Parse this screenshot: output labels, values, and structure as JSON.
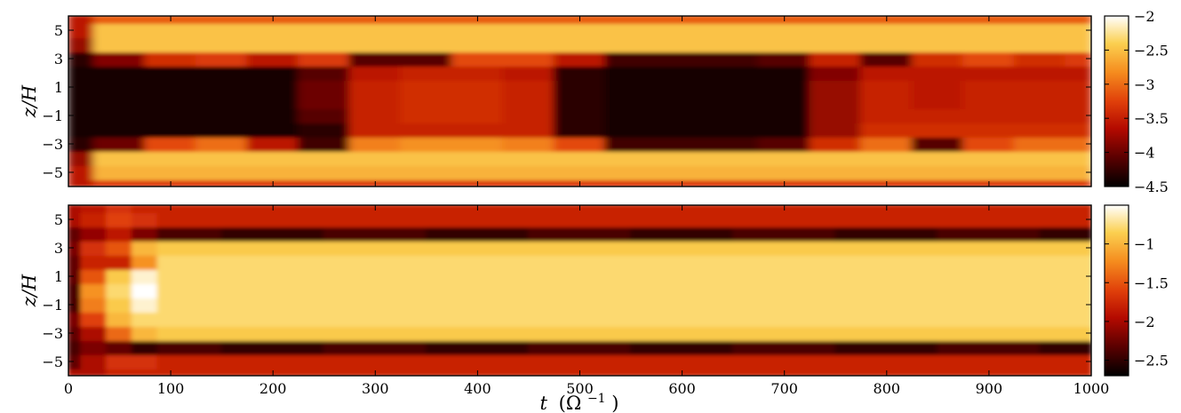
{
  "chart_data": [
    {
      "type": "heatmap",
      "panel": "top",
      "title": "",
      "xlabel": "",
      "ylabel": "z/H",
      "xlim": [
        0,
        1000
      ],
      "ylim": [
        -6,
        6
      ],
      "yticks": [
        5,
        3,
        1,
        -1,
        -3,
        -5
      ],
      "ytick_labels": [
        "5",
        "3",
        "1",
        "−1",
        "−3",
        "−5"
      ],
      "colorbar": {
        "range": [
          -4.5,
          -2
        ],
        "ticks": [
          -2,
          -2.5,
          -3,
          -3.5,
          -4,
          -4.5
        ],
        "tick_labels": [
          "−2",
          "−2.5",
          "−3",
          "−3.5",
          "−4",
          "−4.5"
        ],
        "colormap": [
          "#000000",
          "#5a0000",
          "#b40a00",
          "#e0400a",
          "#f58c1e",
          "#fbd050",
          "#ffffff"
        ]
      },
      "x_times": [
        0,
        50,
        100,
        150,
        200,
        250,
        300,
        350,
        400,
        450,
        500,
        550,
        600,
        650,
        700,
        750,
        800,
        850,
        900,
        950,
        1000
      ],
      "z_levels": [
        -6,
        -5,
        -4,
        -3,
        -2,
        -1,
        0,
        1,
        2,
        3,
        4,
        5,
        6
      ],
      "z_values": [
        [
          -3.6,
          -3.3,
          -3.3,
          -3.3,
          -3.3,
          -3.3,
          -3.3,
          -3.3,
          -3.3,
          -3.3,
          -3.3,
          -3.3,
          -3.3,
          -3.3,
          -3.3,
          -3.3,
          -3.3,
          -3.3,
          -3.3,
          -3.3,
          -3.3
        ],
        [
          -3.6,
          -2.6,
          -2.6,
          -2.6,
          -2.6,
          -2.6,
          -2.6,
          -2.6,
          -2.6,
          -2.6,
          -2.6,
          -2.6,
          -2.6,
          -2.6,
          -2.6,
          -2.6,
          -2.6,
          -2.6,
          -2.6,
          -2.6,
          -2.6
        ],
        [
          -3.8,
          -2.5,
          -2.5,
          -2.5,
          -2.5,
          -2.5,
          -2.5,
          -2.5,
          -2.5,
          -2.5,
          -2.5,
          -2.5,
          -2.5,
          -2.5,
          -2.5,
          -2.5,
          -2.5,
          -2.5,
          -2.5,
          -2.5,
          -2.5
        ],
        [
          -4.3,
          -4.0,
          -3.2,
          -3.0,
          -3.6,
          -4.2,
          -2.9,
          -2.8,
          -2.8,
          -2.9,
          -3.2,
          -4.2,
          -4.2,
          -4.2,
          -4.1,
          -3.4,
          -3.0,
          -4.1,
          -3.2,
          -3.0,
          -3.0
        ],
        [
          -4.4,
          -4.4,
          -4.4,
          -4.4,
          -4.4,
          -4.3,
          -3.5,
          -3.5,
          -3.5,
          -3.5,
          -4.3,
          -4.4,
          -4.4,
          -4.4,
          -4.4,
          -3.8,
          -3.4,
          -3.4,
          -3.4,
          -3.4,
          -3.4
        ],
        [
          -4.4,
          -4.4,
          -4.4,
          -4.4,
          -4.4,
          -4.1,
          -3.5,
          -3.4,
          -3.4,
          -3.5,
          -4.3,
          -4.4,
          -4.4,
          -4.4,
          -4.4,
          -3.8,
          -3.5,
          -3.5,
          -3.5,
          -3.5,
          -3.5
        ],
        [
          -4.4,
          -4.4,
          -4.4,
          -4.4,
          -4.4,
          -4.0,
          -3.5,
          -3.4,
          -3.4,
          -3.5,
          -4.3,
          -4.4,
          -4.4,
          -4.4,
          -4.4,
          -3.8,
          -3.5,
          -3.6,
          -3.5,
          -3.5,
          -3.5
        ],
        [
          -4.4,
          -4.4,
          -4.4,
          -4.4,
          -4.4,
          -4.0,
          -3.5,
          -3.4,
          -3.4,
          -3.5,
          -4.3,
          -4.4,
          -4.4,
          -4.4,
          -4.4,
          -3.8,
          -3.5,
          -3.6,
          -3.5,
          -3.5,
          -3.5
        ],
        [
          -4.4,
          -4.4,
          -4.4,
          -4.4,
          -4.4,
          -4.1,
          -3.6,
          -3.5,
          -3.5,
          -3.6,
          -4.3,
          -4.4,
          -4.4,
          -4.4,
          -4.4,
          -3.9,
          -3.6,
          -3.6,
          -3.6,
          -3.6,
          -3.6
        ],
        [
          -4.3,
          -3.9,
          -3.4,
          -3.3,
          -3.6,
          -3.3,
          -4.1,
          -4.1,
          -3.2,
          -3.2,
          -3.6,
          -4.2,
          -4.2,
          -4.2,
          -4.1,
          -3.5,
          -4.1,
          -3.4,
          -3.2,
          -3.4,
          -3.3
        ],
        [
          -3.8,
          -2.5,
          -2.5,
          -2.5,
          -2.5,
          -2.5,
          -2.5,
          -2.5,
          -2.5,
          -2.5,
          -2.5,
          -2.5,
          -2.5,
          -2.5,
          -2.5,
          -2.5,
          -2.5,
          -2.5,
          -2.5,
          -2.5,
          -2.5
        ],
        [
          -3.6,
          -2.5,
          -2.5,
          -2.5,
          -2.5,
          -2.5,
          -2.5,
          -2.5,
          -2.5,
          -2.5,
          -2.5,
          -2.5,
          -2.5,
          -2.5,
          -2.5,
          -2.5,
          -2.5,
          -2.5,
          -2.5,
          -2.5,
          -2.5
        ],
        [
          -3.6,
          -3.1,
          -3.1,
          -3.1,
          -3.1,
          -3.1,
          -3.1,
          -3.1,
          -3.1,
          -3.1,
          -3.1,
          -3.1,
          -3.1,
          -3.1,
          -3.1,
          -3.1,
          -3.1,
          -3.1,
          -3.1,
          -3.1,
          -3.1
        ]
      ]
    },
    {
      "type": "heatmap",
      "panel": "bottom",
      "title": "",
      "xlabel": "t (Ω⁻¹)",
      "ylabel": "z/H",
      "xlim": [
        0,
        1000
      ],
      "ylim": [
        -6,
        6
      ],
      "xticks": [
        0,
        100,
        200,
        300,
        400,
        500,
        600,
        700,
        800,
        900,
        1000
      ],
      "xtick_labels": [
        "0",
        "100",
        "200",
        "300",
        "400",
        "500",
        "600",
        "700",
        "800",
        "900",
        "1000"
      ],
      "yticks": [
        5,
        3,
        1,
        -1,
        -3,
        -5
      ],
      "ytick_labels": [
        "5",
        "3",
        "1",
        "−1",
        "−3",
        "−5"
      ],
      "colorbar": {
        "range": [
          -2.7,
          -0.5
        ],
        "ticks": [
          -1,
          -1.5,
          -2,
          -2.5
        ],
        "tick_labels": [
          "−1",
          "−1.5",
          "−2",
          "−2.5"
        ],
        "colormap": [
          "#000000",
          "#5a0000",
          "#b40a00",
          "#e0400a",
          "#f58c1e",
          "#fbd050",
          "#ffffff"
        ]
      },
      "x_times": [
        0,
        25,
        50,
        75,
        100,
        200,
        300,
        400,
        500,
        600,
        700,
        800,
        900,
        1000
      ],
      "z_levels": [
        -6,
        -5,
        -4,
        -3,
        -2,
        -1,
        0,
        1,
        2,
        3,
        4,
        5,
        6
      ],
      "z_values": [
        [
          -2.0,
          -2.0,
          -1.8,
          -1.8,
          -1.8,
          -1.8,
          -1.8,
          -1.8,
          -1.8,
          -1.8,
          -1.8,
          -1.8,
          -1.8,
          -1.8
        ],
        [
          -2.3,
          -2.0,
          -1.7,
          -1.7,
          -1.8,
          -1.8,
          -1.8,
          -1.8,
          -1.8,
          -1.8,
          -1.8,
          -1.8,
          -1.8,
          -1.8
        ],
        [
          -2.4,
          -2.2,
          -2.3,
          -2.5,
          -2.4,
          -2.5,
          -2.4,
          -2.5,
          -2.4,
          -2.5,
          -2.4,
          -2.5,
          -2.4,
          -2.5
        ],
        [
          -2.3,
          -2.0,
          -1.4,
          -1.0,
          -0.9,
          -0.9,
          -0.9,
          -0.9,
          -0.9,
          -0.9,
          -0.9,
          -0.9,
          -0.9,
          -0.9
        ],
        [
          -2.2,
          -1.6,
          -1.0,
          -0.8,
          -0.8,
          -0.8,
          -0.8,
          -0.8,
          -0.8,
          -0.8,
          -0.8,
          -0.8,
          -0.8,
          -0.8
        ],
        [
          -2.4,
          -1.3,
          -0.9,
          -0.6,
          -0.8,
          -0.8,
          -0.8,
          -0.8,
          -0.8,
          -0.8,
          -0.8,
          -0.8,
          -0.8,
          -0.8
        ],
        [
          -2.4,
          -1.2,
          -0.8,
          -0.5,
          -0.8,
          -0.8,
          -0.8,
          -0.8,
          -0.8,
          -0.8,
          -0.8,
          -0.8,
          -0.8,
          -0.8
        ],
        [
          -2.3,
          -1.5,
          -0.9,
          -0.6,
          -0.8,
          -0.8,
          -0.8,
          -0.8,
          -0.8,
          -0.8,
          -0.8,
          -0.8,
          -0.8,
          -0.8
        ],
        [
          -2.3,
          -1.8,
          -1.8,
          -1.2,
          -0.8,
          -0.8,
          -0.8,
          -0.8,
          -0.8,
          -0.8,
          -0.8,
          -0.8,
          -0.8,
          -0.8
        ],
        [
          -2.2,
          -1.7,
          -1.5,
          -1.0,
          -0.9,
          -0.9,
          -0.9,
          -0.9,
          -0.9,
          -0.9,
          -0.9,
          -0.9,
          -0.9,
          -0.9
        ],
        [
          -2.3,
          -2.1,
          -1.9,
          -2.2,
          -2.4,
          -2.5,
          -2.4,
          -2.5,
          -2.4,
          -2.5,
          -2.4,
          -2.5,
          -2.4,
          -2.5
        ],
        [
          -2.0,
          -1.8,
          -1.6,
          -1.7,
          -1.8,
          -1.8,
          -1.8,
          -1.8,
          -1.8,
          -1.8,
          -1.8,
          -1.8,
          -1.8,
          -1.8
        ],
        [
          -2.0,
          -1.9,
          -1.7,
          -1.8,
          -1.8,
          -1.8,
          -1.8,
          -1.8,
          -1.8,
          -1.8,
          -1.8,
          -1.8,
          -1.8,
          -1.8
        ]
      ]
    }
  ],
  "labels": {
    "ylabel_top": "z/H",
    "ylabel_bottom": "z/H",
    "xlabel_var": "t",
    "xlabel_unit_open": "(Ω",
    "xlabel_unit_exp": "−1",
    "xlabel_unit_close": ")"
  }
}
